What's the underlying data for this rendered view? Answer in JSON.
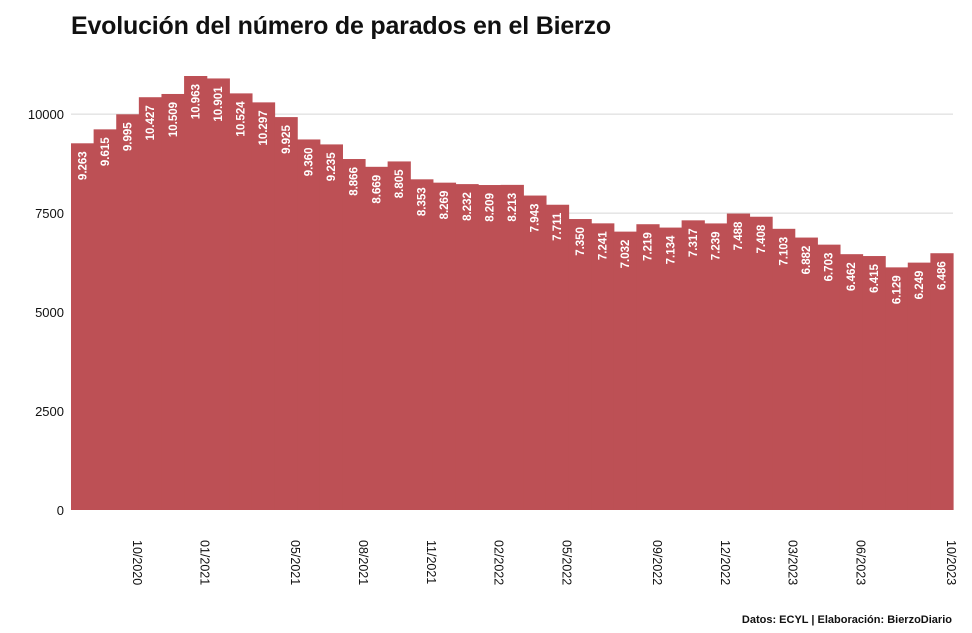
{
  "title": "Evolución del número de parados en el Bierzo",
  "footer": "Datos: ECYL | Elaboración: BierzoDiario",
  "colors": {
    "bar": "#bd5055",
    "grid": "#d6d6d6",
    "text": "#111111",
    "value_label": "#ffffff"
  },
  "chart_data": {
    "type": "bar",
    "title": "Evolución del número de parados en el Bierzo",
    "xlabel": "",
    "ylabel": "",
    "ylim": [
      0,
      10963
    ],
    "yticks": [
      0,
      2500,
      5000,
      7500,
      10000
    ],
    "ytick_labels": [
      "0",
      "2500",
      "5000",
      "7500",
      "10000"
    ],
    "grid": true,
    "legend": "none",
    "values": [
      9263,
      9615,
      9995,
      10427,
      10509,
      10963,
      10901,
      10524,
      10297,
      9925,
      9360,
      9235,
      8866,
      8669,
      8805,
      8353,
      8269,
      8232,
      8209,
      8213,
      7943,
      7711,
      7350,
      7241,
      7032,
      7219,
      7134,
      7317,
      7239,
      7488,
      7408,
      7103,
      6882,
      6703,
      6462,
      6415,
      6129,
      6249,
      6486
    ],
    "value_labels": [
      "9.263",
      "9.615",
      "9.995",
      "10.427",
      "10.509",
      "10.963",
      "10.901",
      "10.524",
      "10.297",
      "9.925",
      "9.360",
      "9.235",
      "8.866",
      "8.669",
      "8.805",
      "8.353",
      "8.269",
      "8.232",
      "8.209",
      "8.213",
      "7.943",
      "7.711",
      "7.350",
      "7.241",
      "7.032",
      "7.219",
      "7.134",
      "7.317",
      "7.239",
      "7.488",
      "7.408",
      "7.103",
      "6.882",
      "6.703",
      "6.462",
      "6.415",
      "6.129",
      "6.249",
      "6.486"
    ],
    "x_tick_labels": [
      {
        "index": 3,
        "label": "10/2020"
      },
      {
        "index": 6,
        "label": "01/2021"
      },
      {
        "index": 10,
        "label": "05/2021"
      },
      {
        "index": 13,
        "label": "08/2021"
      },
      {
        "index": 16,
        "label": "11/2021"
      },
      {
        "index": 19,
        "label": "02/2022"
      },
      {
        "index": 22,
        "label": "05/2022"
      },
      {
        "index": 26,
        "label": "09/2022"
      },
      {
        "index": 29,
        "label": "12/2022"
      },
      {
        "index": 32,
        "label": "03/2023"
      },
      {
        "index": 35,
        "label": "06/2023"
      },
      {
        "index": 39,
        "label": "10/2023"
      }
    ]
  }
}
